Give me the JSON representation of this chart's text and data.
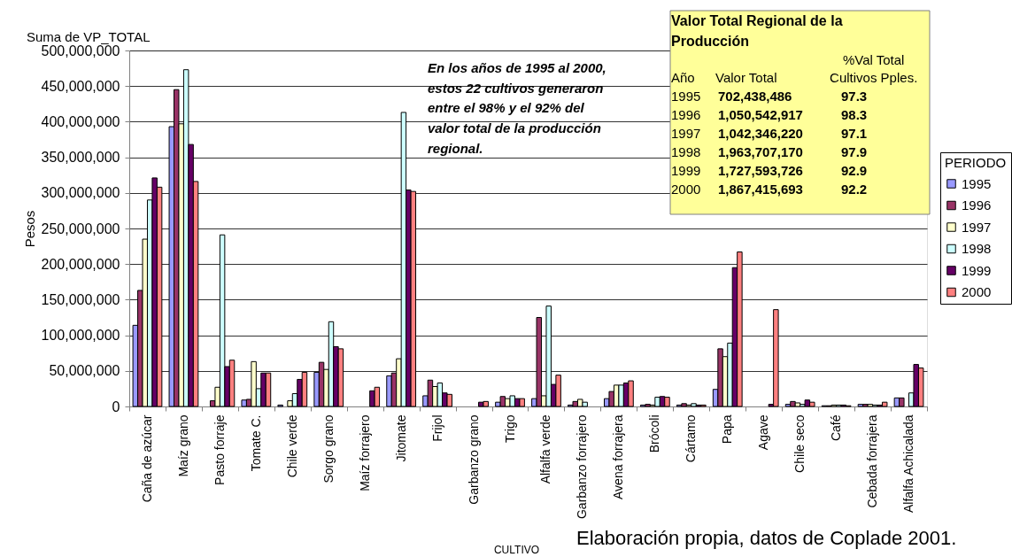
{
  "chart_data": {
    "type": "bar",
    "title": "Suma de VP_TOTAL",
    "xlabel": "CULTIVO",
    "ylabel": "Pesos",
    "legend_title": "PERIODO",
    "categories": [
      "Caña de azúcar",
      "Maíz grano",
      "Pasto forraje",
      "Tomate C.",
      "Chile verde",
      "Sorgo grano",
      "Maíz forrajero",
      "Jitomate",
      "Frijol",
      "Garbanzo grano",
      "Trigo",
      "Alfalfa verde",
      "Garbanzo forrajero",
      "Avena forrajera",
      "Brócoli",
      "Cártamo",
      "Papa",
      "Agave",
      "Chile seco",
      "Café",
      "Cebada forrajera",
      "Alfalfa Achicalada"
    ],
    "series": [
      {
        "name": "1995",
        "color": "#9999ff",
        "values": [
          114000000,
          393000000,
          null,
          9000000,
          2000000,
          48000000,
          null,
          43000000,
          15000000,
          null,
          6000000,
          11000000,
          2000000,
          11000000,
          2000000,
          2000000,
          24000000,
          null,
          3000000,
          1000000,
          3000000,
          12000000
        ]
      },
      {
        "name": "1996",
        "color": "#993366",
        "values": [
          163000000,
          445000000,
          8000000,
          10000000,
          null,
          62000000,
          null,
          47000000,
          37000000,
          null,
          14000000,
          125000000,
          7000000,
          21000000,
          3000000,
          4000000,
          81000000,
          null,
          7000000,
          1000000,
          3000000,
          12000000
        ]
      },
      {
        "name": "1997",
        "color": "#ffffcc",
        "values": [
          235000000,
          397000000,
          27000000,
          63000000,
          8000000,
          52000000,
          null,
          67000000,
          28000000,
          null,
          11000000,
          15000000,
          10000000,
          30000000,
          2000000,
          2000000,
          70000000,
          null,
          5000000,
          2000000,
          3000000,
          null
        ]
      },
      {
        "name": "1998",
        "color": "#ccffff",
        "values": [
          290000000,
          473000000,
          241000000,
          25000000,
          18000000,
          119000000,
          null,
          413000000,
          33000000,
          null,
          15000000,
          141000000,
          6000000,
          30000000,
          13000000,
          4000000,
          89000000,
          null,
          3000000,
          2000000,
          2000000,
          19000000
        ]
      },
      {
        "name": "1999",
        "color": "#660066",
        "values": [
          321000000,
          368000000,
          56000000,
          47000000,
          38000000,
          84000000,
          22000000,
          304000000,
          19000000,
          6000000,
          11000000,
          31000000,
          null,
          33000000,
          14000000,
          2000000,
          195000000,
          3000000,
          9000000,
          2000000,
          2000000,
          59000000
        ]
      },
      {
        "name": "2000",
        "color": "#ff8080",
        "values": [
          308000000,
          316000000,
          65000000,
          47000000,
          48000000,
          81000000,
          27000000,
          302000000,
          17000000,
          7000000,
          11000000,
          44000000,
          null,
          36000000,
          13000000,
          2000000,
          217000000,
          136000000,
          6000000,
          1000000,
          6000000,
          54000000
        ]
      }
    ],
    "ylim": [
      0,
      500000000
    ],
    "yticks": [
      0,
      {
        "value": 50000000,
        "label": "50,000,000"
      },
      {
        "value": 100000000,
        "label": "100,000,000"
      },
      {
        "value": 150000000,
        "label": "150,000,000"
      },
      {
        "value": 200000000,
        "label": "200,000,000"
      },
      {
        "value": 250000000,
        "label": "250,000,000"
      },
      {
        "value": 300000000,
        "label": "300,000,000"
      },
      {
        "value": 350000000,
        "label": "350,000,000"
      },
      {
        "value": 400000000,
        "label": "400,000,000"
      },
      {
        "value": 450000000,
        "label": "450,000,000"
      },
      {
        "value": 500000000,
        "label": "500,000,000"
      }
    ],
    "grid": "y",
    "legend": "right",
    "annotations": [
      "En los años de 1995 al 2000,\nestos 22 cultivos generaron\nentre el 98% y el 92% del\nvalor total de la producción\nregional.",
      "Valor Total Regional de la\nProducción",
      "Año",
      "Valor Total",
      "%Val Total\nCultivos Pples.",
      "1995",
      "702,438,486",
      "97.3",
      "1996",
      "1,050,542,917",
      "98.3",
      "1997",
      "1,042,346,220",
      "97.1",
      "1998",
      "1,963,707,170",
      "97.9",
      "1999",
      "1,727,593,726",
      "92.9",
      "2000",
      "1,867,415,693",
      "92.2",
      "Elaboración propia, datos de Coplade 2001."
    ]
  }
}
